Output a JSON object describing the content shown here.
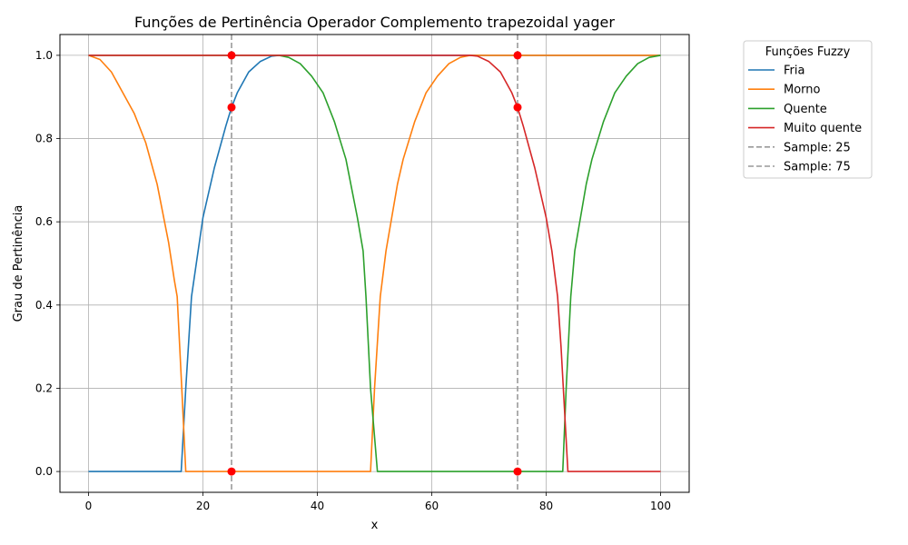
{
  "chart_data": {
    "type": "line",
    "title": "Funções de Pertinência Operador Complemento trapezoidal yager",
    "xlabel": "x",
    "ylabel": "Grau de Pertinência",
    "xlim": [
      -5,
      105
    ],
    "ylim": [
      -0.05,
      1.05
    ],
    "xticks": [
      0,
      20,
      40,
      60,
      80,
      100
    ],
    "xtick_labels": [
      "0",
      "20",
      "40",
      "60",
      "80",
      "100"
    ],
    "yticks": [
      0,
      0.2,
      0.4,
      0.6,
      0.8,
      1.0
    ],
    "ytick_labels": [
      "0.0",
      "0.2",
      "0.4",
      "0.6",
      "0.8",
      "1.0"
    ],
    "grid": true,
    "legend": {
      "title": "Funções Fuzzy",
      "position": "outside-right"
    },
    "series": [
      {
        "name": "Fria",
        "color": "#1f77b4",
        "x": [
          0,
          16.2,
          17,
          18,
          20,
          22,
          24,
          25,
          26,
          28,
          30,
          32,
          33.3,
          40,
          50,
          60,
          70,
          80,
          90,
          100
        ],
        "y": [
          0,
          0,
          0.2,
          0.42,
          0.61,
          0.73,
          0.83,
          0.875,
          0.91,
          0.96,
          0.985,
          0.998,
          1.0,
          1.0,
          1.0,
          1.0,
          1.0,
          1.0,
          1.0,
          1.0
        ]
      },
      {
        "name": "Morno",
        "color": "#ff7f0e",
        "x": [
          0,
          2,
          4,
          6,
          8,
          10,
          12,
          14,
          15,
          15.5,
          16.3,
          17,
          49.3,
          50,
          51,
          52,
          53,
          54,
          55,
          57,
          59,
          61,
          63,
          65,
          66.7,
          70,
          80,
          90,
          100
        ],
        "y": [
          1.0,
          0.99,
          0.96,
          0.91,
          0.86,
          0.79,
          0.69,
          0.55,
          0.46,
          0.42,
          0.2,
          0,
          0,
          0.2,
          0.42,
          0.53,
          0.61,
          0.69,
          0.75,
          0.84,
          0.91,
          0.95,
          0.98,
          0.995,
          1.0,
          1.0,
          1.0,
          1.0,
          1.0
        ]
      },
      {
        "name": "Quente",
        "color": "#2ca02c",
        "x": [
          0,
          10,
          20,
          30,
          33.3,
          35,
          37,
          39,
          41,
          43,
          45,
          47,
          48,
          48.5,
          49.3,
          50.5,
          60,
          70,
          80,
          82.9,
          83.5,
          84.3,
          85,
          86,
          87,
          88,
          90,
          92,
          94,
          96,
          98,
          100
        ],
        "y": [
          1.0,
          1.0,
          1.0,
          1.0,
          1.0,
          0.995,
          0.98,
          0.95,
          0.91,
          0.84,
          0.75,
          0.61,
          0.53,
          0.42,
          0.2,
          0,
          0,
          0,
          0,
          0,
          0.2,
          0.42,
          0.53,
          0.61,
          0.69,
          0.75,
          0.84,
          0.91,
          0.95,
          0.98,
          0.995,
          1.0
        ]
      },
      {
        "name": "Muito quente",
        "color": "#d62728",
        "x": [
          0,
          20,
          40,
          60,
          66.7,
          68,
          70,
          72,
          74,
          75,
          76,
          78,
          80,
          81,
          82,
          82.6,
          83.2,
          83.8,
          84,
          90,
          100
        ],
        "y": [
          1.0,
          1.0,
          1.0,
          1.0,
          1.0,
          0.998,
          0.985,
          0.96,
          0.91,
          0.875,
          0.83,
          0.73,
          0.61,
          0.53,
          0.42,
          0.3,
          0.15,
          0,
          0,
          0,
          0
        ]
      }
    ],
    "samples": [
      {
        "name": "Sample: 25",
        "x": 25,
        "color": "#999999"
      },
      {
        "name": "Sample: 75",
        "x": 75,
        "color": "#999999"
      }
    ],
    "sample_points": {
      "color": "#ff0000",
      "points": [
        [
          25,
          1.0
        ],
        [
          25,
          0.875
        ],
        [
          25,
          0.0
        ],
        [
          75,
          1.0
        ],
        [
          75,
          0.875
        ],
        [
          75,
          0.0
        ]
      ]
    }
  }
}
